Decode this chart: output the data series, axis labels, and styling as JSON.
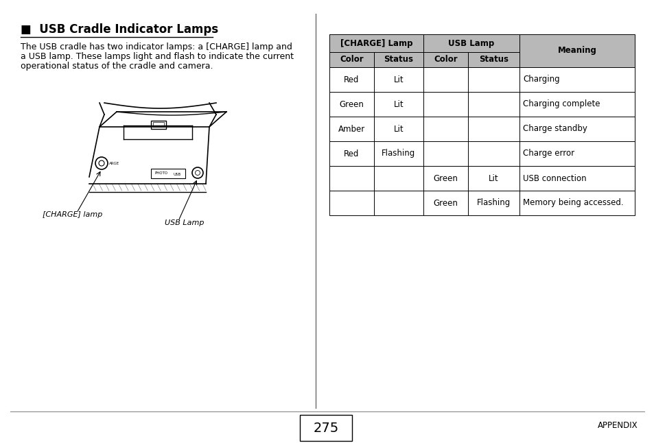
{
  "title": "USB Cradle Indicator Lamps",
  "title_prefix": "■  ",
  "body_text_lines": [
    "The USB cradle has two indicator lamps: a [CHARGE] lamp and",
    "a USB lamp. These lamps light and flash to indicate the current",
    "operational status of the cradle and camera."
  ],
  "table_header_row1": [
    "[CHARGE] Lamp",
    "USB Lamp",
    "Meaning"
  ],
  "table_header_row2": [
    "Color",
    "Status",
    "Color",
    "Status"
  ],
  "table_data": [
    [
      "Red",
      "Lit",
      "",
      "",
      "Charging"
    ],
    [
      "Green",
      "Lit",
      "",
      "",
      "Charging complete"
    ],
    [
      "Amber",
      "Lit",
      "",
      "",
      "Charge standby"
    ],
    [
      "Red",
      "Flashing",
      "",
      "",
      "Charge error"
    ],
    [
      "",
      "",
      "Green",
      "Lit",
      "USB connection"
    ],
    [
      "",
      "",
      "Green",
      "Flashing",
      "Memory being accessed."
    ]
  ],
  "header_bg": "#b8b8b8",
  "cell_bg": "#ffffff",
  "border_color": "#000000",
  "page_number": "275",
  "footer_text": "APPENDIX",
  "bg_color": "#ffffff",
  "charge_lamp_label": "[CHARGE] lamp",
  "usb_lamp_label": "USB Lamp",
  "font_size_title": 12,
  "font_size_body": 9,
  "font_size_table": 8.5,
  "font_size_footer": 8.5,
  "font_size_page": 14,
  "font_size_label": 8
}
